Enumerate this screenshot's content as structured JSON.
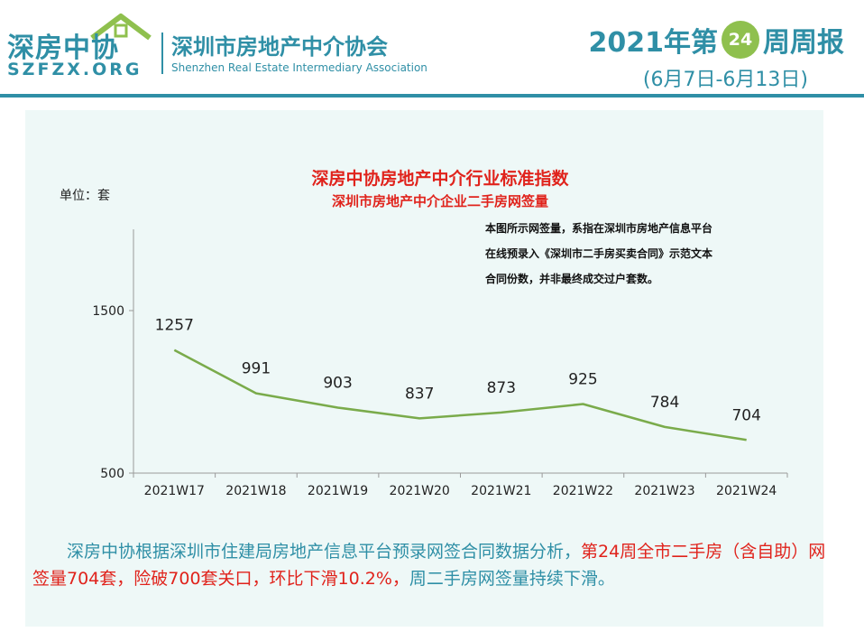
{
  "header": {
    "logo_cn": "深房中协",
    "logo_en": "SZFZX.ORG",
    "assoc_cn": "深圳市房地产中介协会",
    "assoc_en": "Shenzhen Real Estate Intermediary Association",
    "report_prefix": "2021年第",
    "week_number": "24",
    "report_suffix": "周周报",
    "date_range": "(6月7日-6月13日)"
  },
  "chart_data": {
    "type": "line",
    "title": "深房中协房地产中介行业标准指数",
    "subtitle": "深圳市房地产中介企业二手房网签量",
    "unit_label": "单位：套",
    "note_lines": [
      "本图所示网签量，系指在深圳市房地产信息平台",
      "在线预录入《深圳市二手房买卖合同》示范文本",
      "合同份数，并非最终成交过户套数。"
    ],
    "categories": [
      "2021W17",
      "2021W18",
      "2021W19",
      "2021W20",
      "2021W21",
      "2021W22",
      "2021W23",
      "2021W24"
    ],
    "values": [
      1257,
      991,
      903,
      837,
      873,
      925,
      784,
      704
    ],
    "ylim": [
      500,
      2000
    ],
    "yticks": [
      500,
      1500
    ],
    "line_color": "#7aab4b"
  },
  "summary": {
    "normal": "深房中协根据深圳市住建局房地产信息平台预录网签合同数据分析，",
    "highlight": "第24周全市二手房（含自助）网签量704套，险破700套关口，环比下滑10.2%，",
    "tail": "周二手房网签量持续下滑。"
  },
  "colors": {
    "brand": "#2f8fa6",
    "accent": "#8fc04e",
    "title_red": "#e0231c",
    "panel_bg": "#eef8f7"
  }
}
